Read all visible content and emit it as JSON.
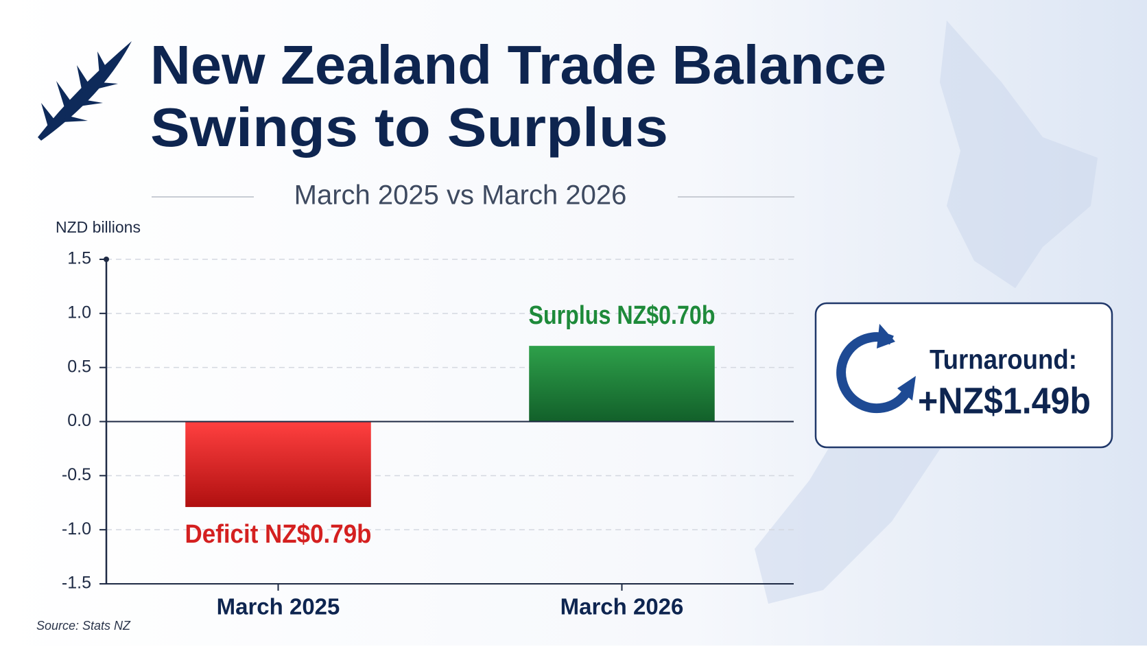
{
  "chart_data": {
    "type": "bar",
    "title": [
      "New Zealand Trade Balance",
      "Swings to Surplus"
    ],
    "subtitle": "March 2025 vs March 2026",
    "y_label": "NZD billions",
    "categories": [
      "March 2025",
      "March 2026"
    ],
    "values": [
      -0.79,
      0.7
    ],
    "value_labels": [
      "Deficit NZ$0.79b",
      "Surplus NZ$0.70b"
    ],
    "colors": [
      "#d42020",
      "#1e8a3a"
    ],
    "ylim": [
      -1.5,
      1.5
    ],
    "yticks": [
      -1.5,
      {
        "value": -1,
        "label": "-1.0"
      },
      -0.5,
      {
        "value": 0,
        "label": "0.0"
      },
      0.5,
      {
        "value": 1,
        "label": "1.0"
      },
      1.5
    ],
    "grid": true,
    "callout": {
      "label": "Turnaround:",
      "value": "+NZ$1.49b"
    },
    "source": "Source: Stats NZ"
  }
}
